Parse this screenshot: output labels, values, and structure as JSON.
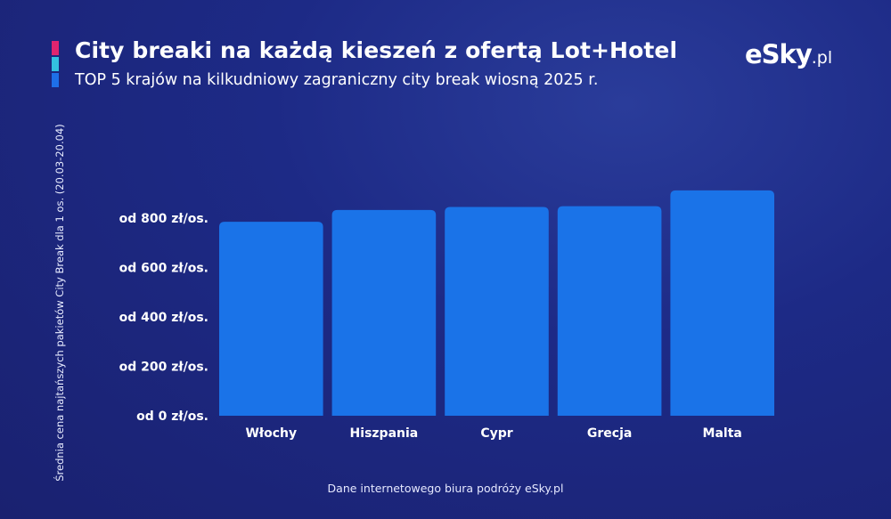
{
  "header": {
    "title": "City breaki na każdą kieszeń z ofertą Lot+Hotel",
    "subtitle": "TOP 5 krajów na kilkudniowy zagraniczny city break wiosną 2025 r.",
    "logo_main": "eSky",
    "logo_domain": ".pl"
  },
  "colors": {
    "bar": "#1a73e8",
    "accent_1": "#e0246f",
    "accent_2": "#33c1e0",
    "accent_3": "#1e6fe8"
  },
  "footer": {
    "source": "Dane internetowego biura podróży eSky.pl"
  },
  "chart_data": {
    "type": "bar",
    "title": "City breaki na każdą kieszeń z ofertą Lot+Hotel",
    "subtitle": "TOP 5 krajów na kilkudniowy zagraniczny city break wiosną 2025 r.",
    "xlabel": "",
    "ylabel": "Średnia cena najtańszych pakietów City Break dla 1 os. (20.03-20.04)",
    "categories": [
      "Włochy",
      "Hiszpania",
      "Cypr",
      "Grecja",
      "Malta"
    ],
    "values": [
      785,
      833,
      845,
      848,
      912
    ],
    "ylim": [
      0,
      1000
    ],
    "yticks": [
      0,
      200,
      400,
      600,
      800
    ],
    "ytick_labels": [
      "od 0 zł/os.",
      "od 200 zł/os.",
      "od 400 zł/os.",
      "od 600 zł/os.",
      "od 800 zł/os."
    ],
    "grid": false,
    "legend": "none"
  }
}
